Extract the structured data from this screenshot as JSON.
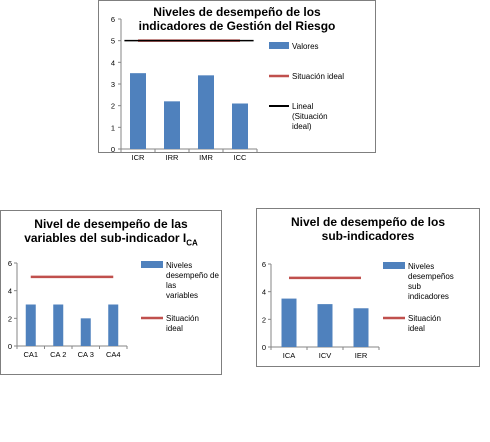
{
  "colors": {
    "bar": "#4f81bd",
    "ideal": "#c0504d",
    "linear": "#000000"
  },
  "chart_data": [
    {
      "type": "bar",
      "title_lines": [
        "Niveles de desempeño de los",
        "indicadores de Gestión del Riesgo"
      ],
      "categories": [
        "ICR",
        "IRR",
        "IMR",
        "ICC"
      ],
      "series": [
        {
          "name": "Valores",
          "kind": "bar",
          "values": [
            3.5,
            2.2,
            3.4,
            2.1
          ]
        },
        {
          "name": "Situación ideal",
          "kind": "line",
          "values": [
            5,
            5,
            5,
            5
          ]
        },
        {
          "name": "Lineal (Situación ideal)",
          "kind": "trend",
          "values": [
            5,
            5,
            5,
            5
          ]
        }
      ],
      "legend": [
        "Valores",
        "Situación ideal",
        "Lineal (Situación ideal)"
      ],
      "ylim": [
        0,
        6
      ],
      "yticks": [
        0,
        1,
        2,
        3,
        4,
        5,
        6
      ],
      "grid": false,
      "legend_position": "right"
    },
    {
      "type": "bar",
      "title_lines": [
        "Nivel de desempeño de las",
        "variables del sub-indicador  I"
      ],
      "title_subscript": "CA",
      "categories": [
        "CA1",
        "CA 2",
        "CA 3",
        "CA4"
      ],
      "series": [
        {
          "name": "Niveles desempeño de las variables",
          "kind": "bar",
          "values": [
            3,
            3,
            2,
            3
          ]
        },
        {
          "name": "Situación ideal",
          "kind": "line",
          "values": [
            5,
            5,
            5,
            5
          ]
        }
      ],
      "legend": [
        "Niveles desempeño de las variables",
        "Situación ideal"
      ],
      "ylim": [
        0,
        6
      ],
      "yticks": [
        0,
        2,
        4,
        6
      ],
      "grid": false,
      "legend_position": "right"
    },
    {
      "type": "bar",
      "title_lines": [
        "Nivel de desempeño de los",
        "sub-indicadores"
      ],
      "categories": [
        "ICA",
        "ICV",
        "IER"
      ],
      "series": [
        {
          "name": "Niveles desempeños sub indicadores",
          "kind": "bar",
          "values": [
            3.5,
            3.1,
            2.8
          ]
        },
        {
          "name": "Situación ideal",
          "kind": "line",
          "values": [
            5,
            5,
            5
          ]
        }
      ],
      "legend": [
        "Niveles desempeños sub indicadores",
        "Situación ideal"
      ],
      "ylim": [
        0,
        6
      ],
      "yticks": [
        0,
        2,
        4,
        6
      ],
      "grid": false,
      "legend_position": "right"
    }
  ]
}
